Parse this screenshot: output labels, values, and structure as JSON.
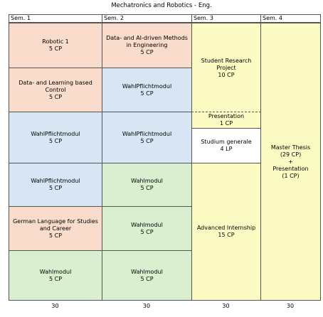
{
  "title": "Mechatronics and Robotics - Eng.",
  "headers": [
    "Sem. 1",
    "Sem. 2",
    "Sem. 3",
    "Sem. 4"
  ],
  "columns": [
    [
      {
        "lines": [
          "Robotic 1",
          "5 CP"
        ],
        "color": "#f9dccb"
      },
      {
        "lines": [
          "Data- and Learning based Control",
          "5 CP"
        ],
        "color": "#f9dccb"
      },
      {
        "lines": [
          "WahlPflichtmodul",
          "5 CP"
        ],
        "color": "#d7e5f4"
      },
      {
        "lines": [
          "WahlPflichtmodul",
          "5 CP"
        ],
        "color": "#d7e5f4"
      },
      {
        "lines": [
          "German Language for Studies and Career",
          "5 CP"
        ],
        "color": "#f9dccb"
      },
      {
        "lines": [
          "Wahlmodul",
          "5 CP"
        ],
        "color": "#d9efcf"
      }
    ],
    [
      {
        "lines": [
          "Data- and AI-driven Methods in Engineering",
          "5 CP"
        ],
        "color": "#f9dccb"
      },
      {
        "lines": [
          "WahlPflichtmodul",
          "5 CP"
        ],
        "color": "#d7e5f4"
      },
      {
        "lines": [
          "WahlPflichtmodul",
          "5 CP"
        ],
        "color": "#d7e5f4"
      },
      {
        "lines": [
          "Wahlmodul",
          "5 CP"
        ],
        "color": "#d9efcf"
      },
      {
        "lines": [
          "Wahlmodul",
          "5 CP"
        ],
        "color": "#d9efcf"
      },
      {
        "lines": [
          "Wahlmodul",
          "5 CP"
        ],
        "color": "#d9efcf"
      }
    ],
    [
      {
        "lines": [
          "Student Research Project",
          "10 CP"
        ],
        "color": "#fdfbc4"
      },
      {
        "lines": [
          "Presentation",
          "1 CP"
        ],
        "color": "#fdfbc4"
      },
      {
        "lines": [
          "Studium generale",
          "4 LP"
        ],
        "color": "#ffffff"
      },
      {
        "lines": [
          "Advanced Internship",
          "15 CP"
        ],
        "color": "#fdfbc4"
      }
    ],
    [
      {
        "lines": [
          "Master Thesis",
          "(29 CP)",
          "+",
          "Presentation",
          "(1 CP)"
        ],
        "color": "#fdfbc4"
      }
    ]
  ],
  "totals": [
    30,
    30,
    30,
    30
  ]
}
